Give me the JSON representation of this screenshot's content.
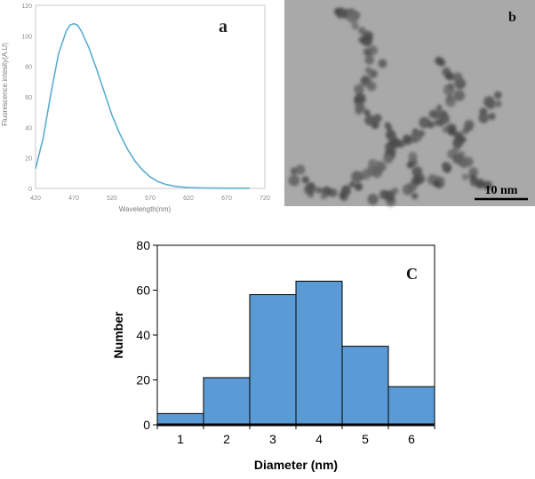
{
  "chart_data": [
    {
      "panel": "a",
      "type": "line",
      "panel_label": "a",
      "xlabel": "Wavelength(nm)",
      "ylabel": "Fluorescence intesity(A.U)",
      "xlim": [
        420,
        720
      ],
      "ylim": [
        0,
        120
      ],
      "xticks": [
        420,
        470,
        520,
        570,
        620,
        670,
        720
      ],
      "yticks": [
        0,
        20,
        40,
        60,
        80,
        100,
        120
      ],
      "grid": false,
      "series": [
        {
          "color": "#5aaed0",
          "x": [
            420,
            430,
            440,
            450,
            460,
            465,
            470,
            475,
            480,
            490,
            500,
            510,
            520,
            530,
            540,
            550,
            560,
            570,
            580,
            590,
            600,
            610,
            620,
            630,
            640,
            650,
            660,
            670,
            680,
            690,
            700
          ],
          "y": [
            13,
            33,
            62,
            88,
            103,
            107,
            108,
            107,
            103,
            92,
            78,
            63,
            48,
            36,
            26,
            18,
            12,
            7.5,
            4.5,
            2.7,
            1.6,
            1.0,
            0.6,
            0.4,
            0.3,
            0.2,
            0.2,
            0.1,
            0.1,
            0.1,
            0.1
          ]
        }
      ]
    },
    {
      "panel": "c",
      "type": "bar",
      "panel_label": "C",
      "xlabel": "Diameter (nm)",
      "ylabel": "Number",
      "categories": [
        "1",
        "2",
        "3",
        "4",
        "5",
        "6"
      ],
      "values": [
        5,
        21,
        58,
        64,
        35,
        17
      ],
      "ylim": [
        0,
        80
      ],
      "yticks": [
        0,
        20,
        40,
        60,
        80
      ],
      "bar_color": "#5b9bd5",
      "grid": false
    }
  ],
  "image_b": {
    "panel_label": "b",
    "scale_bar_label": "10 nm",
    "background_color": "#a9a9a9",
    "particle_color": "#5c5c5c"
  }
}
